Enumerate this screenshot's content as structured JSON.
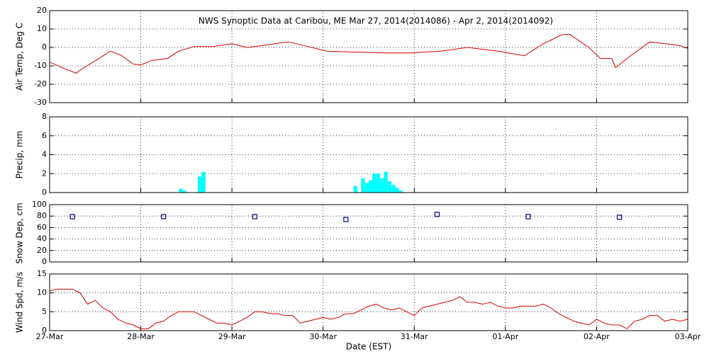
{
  "chart_data": [
    {
      "type": "line",
      "title": "NWS Synoptic Data at Caribou, ME   Mar 27, 2014(2014086) - Apr  2, 2014(2014092)",
      "ylabel": "Air Temp, Deg C",
      "color": "#d40000",
      "x": [
        0,
        4,
        7,
        9,
        13,
        16,
        19,
        22,
        24,
        27,
        31,
        34,
        38,
        43,
        48,
        52,
        56,
        61,
        63,
        68,
        73,
        80,
        88,
        95,
        103,
        110,
        118,
        125,
        130,
        135,
        137,
        142,
        145,
        148,
        149,
        152,
        158,
        162,
        166,
        168
      ],
      "values": [
        -8,
        -11.5,
        -14,
        -11,
        -6,
        -2,
        -4.5,
        -9,
        -9.5,
        -7,
        -6,
        -2,
        0.5,
        0.5,
        2,
        0,
        1,
        2.5,
        3,
        0.5,
        -2,
        -2.5,
        -3,
        -3,
        -2,
        0,
        -2,
        -4.5,
        2,
        7,
        7,
        0,
        -6,
        -6,
        -11,
        -6,
        3,
        2,
        1,
        -0.5
      ],
      "xlim": [
        0,
        168
      ],
      "xticks": [
        0,
        24,
        48,
        72,
        96,
        120,
        144,
        168
      ],
      "ylim": [
        -30,
        20
      ],
      "yticks": [
        -30,
        -20,
        -10,
        0,
        10,
        20
      ],
      "grid": true
    },
    {
      "type": "bar",
      "ylabel": "Precip, mm",
      "color": "#00ffff",
      "x": [
        34,
        35,
        39,
        40,
        80,
        82,
        83,
        84,
        85,
        86,
        87,
        88,
        89,
        90,
        91,
        92
      ],
      "values": [
        0.4,
        0.2,
        1.7,
        2.2,
        0.7,
        1.5,
        1.0,
        1.3,
        2.0,
        2.0,
        1.5,
        2.2,
        1.2,
        0.8,
        0.5,
        0.2
      ],
      "xlim": [
        0,
        168
      ],
      "xticks": [
        0,
        24,
        48,
        72,
        96,
        120,
        144,
        168
      ],
      "ylim": [
        0,
        8
      ],
      "yticks": [
        0,
        2,
        4,
        6,
        8
      ],
      "grid": true
    },
    {
      "type": "scatter",
      "ylabel": "Snow Dep, cm",
      "color": "#000080",
      "x": [
        6,
        30,
        54,
        78,
        102,
        126,
        150
      ],
      "values": [
        79,
        79,
        79,
        74,
        83,
        79,
        78
      ],
      "xlim": [
        0,
        168
      ],
      "xticks": [
        0,
        24,
        48,
        72,
        96,
        120,
        144,
        168
      ],
      "ylim": [
        0,
        100
      ],
      "yticks": [
        0,
        20,
        40,
        60,
        80,
        100
      ],
      "grid": true
    },
    {
      "type": "line",
      "ylabel": "Wind Spd, m/s",
      "xlabel": "Date (EST)",
      "color": "#d40000",
      "x": [
        0,
        2,
        4,
        6,
        8,
        10,
        12,
        14,
        16,
        18,
        20,
        22,
        24,
        26,
        28,
        30,
        32,
        34,
        36,
        38,
        40,
        42,
        44,
        46,
        48,
        50,
        52,
        54,
        56,
        58,
        60,
        62,
        64,
        66,
        68,
        70,
        72,
        74,
        76,
        78,
        80,
        82,
        84,
        86,
        88,
        90,
        92,
        94,
        96,
        98,
        100,
        102,
        104,
        106,
        108,
        110,
        112,
        114,
        116,
        118,
        120,
        122,
        124,
        126,
        128,
        130,
        132,
        134,
        136,
        138,
        140,
        142,
        144,
        146,
        148,
        150,
        152,
        154,
        156,
        158,
        160,
        162,
        164,
        166,
        168
      ],
      "values": [
        10.5,
        11,
        11,
        11,
        10,
        7,
        8,
        6,
        5,
        3,
        2,
        1.5,
        0.5,
        0.5,
        2,
        2.5,
        4,
        5,
        5,
        5,
        4,
        3,
        2,
        2,
        1.5,
        2.5,
        3.5,
        5,
        5,
        4.5,
        4.5,
        4,
        4,
        2,
        2.5,
        3,
        3.5,
        3,
        3.5,
        4.5,
        4.5,
        5.5,
        6.5,
        7,
        6,
        5.5,
        6,
        5,
        4,
        6,
        6.5,
        7,
        7.5,
        8,
        9,
        7.5,
        7.5,
        7,
        7.5,
        6.5,
        6,
        6,
        6.5,
        6.5,
        6.5,
        7,
        6,
        4.5,
        3.5,
        2.5,
        2,
        1.5,
        3,
        2,
        1.5,
        1.5,
        0.5,
        2.5,
        3,
        4,
        4,
        2.5,
        3,
        2.5,
        3
      ],
      "xlim": [
        0,
        168
      ],
      "xticks": [
        {
          "value": 0,
          "label": "27-Mar"
        },
        {
          "value": 24,
          "label": "28-Mar"
        },
        {
          "value": 48,
          "label": "29-Mar"
        },
        {
          "value": 72,
          "label": "30-Mar"
        },
        {
          "value": 96,
          "label": "31-Mar"
        },
        {
          "value": 120,
          "label": "01-Apr"
        },
        {
          "value": 144,
          "label": "02-Apr"
        },
        {
          "value": 168,
          "label": "03-Apr"
        }
      ],
      "ylim": [
        0,
        15
      ],
      "yticks": [
        0,
        5,
        10,
        15
      ],
      "grid": true
    }
  ]
}
